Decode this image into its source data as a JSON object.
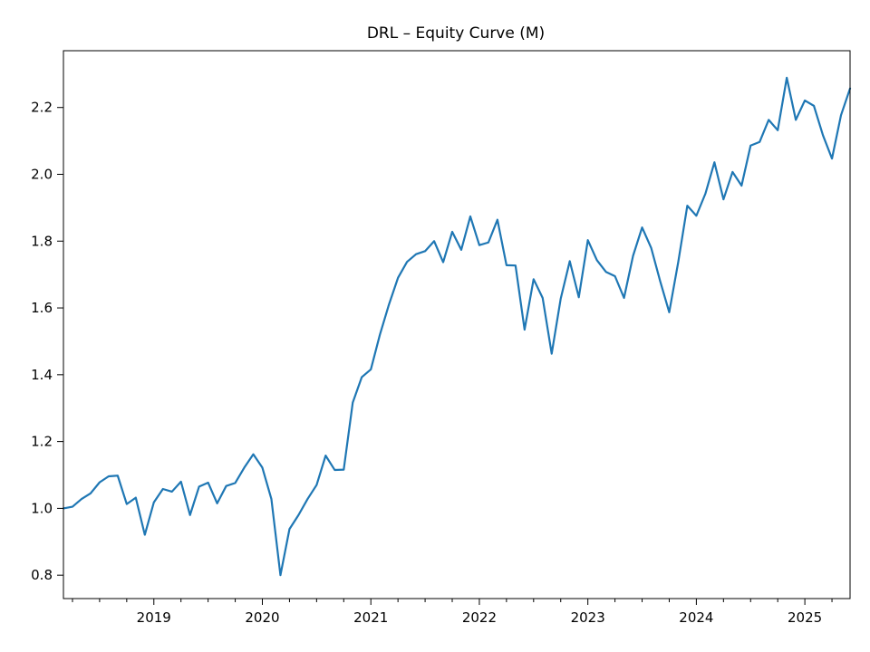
{
  "chart_data": {
    "type": "line",
    "title": "DRL – Equity Curve (M)",
    "xlabel": "",
    "ylabel": "",
    "x_start": "2018-03",
    "x_step": "1 month",
    "xlim": [
      "2018-03",
      "2025-06"
    ],
    "ylim": [
      0.73,
      2.37
    ],
    "x_ticks": [
      {
        "label": "2019",
        "date": "2019-01"
      },
      {
        "label": "2020",
        "date": "2020-01"
      },
      {
        "label": "2021",
        "date": "2021-01"
      },
      {
        "label": "2022",
        "date": "2022-01"
      },
      {
        "label": "2023",
        "date": "2023-01"
      },
      {
        "label": "2024",
        "date": "2024-01"
      },
      {
        "label": "2025",
        "date": "2025-01"
      }
    ],
    "y_ticks": [
      {
        "label": "0.8",
        "value": 0.8
      },
      {
        "label": "1.0",
        "value": 1.0
      },
      {
        "label": "1.2",
        "value": 1.2
      },
      {
        "label": "1.4",
        "value": 1.4
      },
      {
        "label": "1.6",
        "value": 1.6
      },
      {
        "label": "1.8",
        "value": 1.8
      },
      {
        "label": "2.0",
        "value": 2.0
      },
      {
        "label": "2.2",
        "value": 2.2
      }
    ],
    "grid": false,
    "legend": "none",
    "color": "#1f77b4",
    "series": [
      {
        "values": [
          1.0,
          1.005,
          1.028,
          1.045,
          1.078,
          1.096,
          1.098,
          1.013,
          1.032,
          0.921,
          1.018,
          1.058,
          1.05,
          1.08,
          0.98,
          1.065,
          1.077,
          1.015,
          1.067,
          1.076,
          1.122,
          1.162,
          1.122,
          1.028,
          0.8,
          0.938,
          0.98,
          1.028,
          1.07,
          1.158,
          1.115,
          1.116,
          1.317,
          1.393,
          1.416,
          1.52,
          1.61,
          1.69,
          1.738,
          1.761,
          1.77,
          1.8,
          1.737,
          1.828,
          1.774,
          1.874,
          1.788,
          1.796,
          1.864,
          1.728,
          1.727,
          1.535,
          1.686,
          1.63,
          1.463,
          1.628,
          1.74,
          1.632,
          1.803,
          1.743,
          1.708,
          1.695,
          1.63,
          1.756,
          1.841,
          1.78,
          1.68,
          1.587,
          1.738,
          1.906,
          1.876,
          1.942,
          2.036,
          1.925,
          2.007,
          1.966,
          2.086,
          2.097,
          2.163,
          2.132,
          2.289,
          2.163,
          2.221,
          2.205,
          2.117,
          2.047,
          2.177,
          2.257
        ]
      }
    ]
  }
}
